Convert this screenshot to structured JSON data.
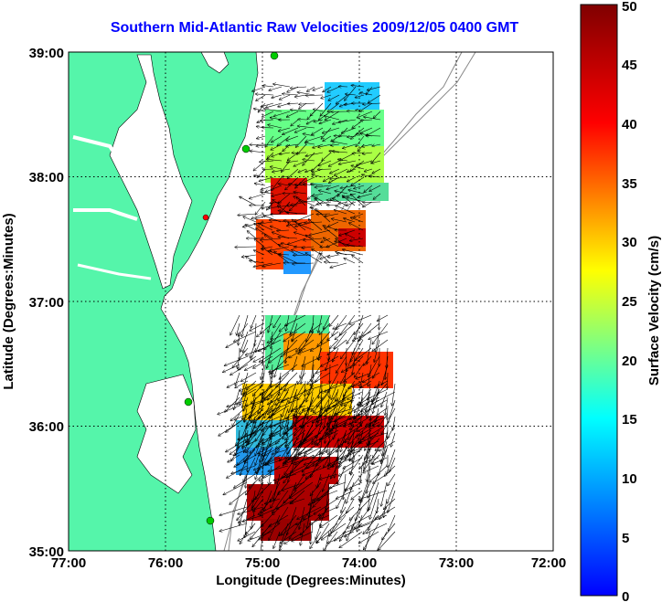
{
  "title": "Southern Mid-Atlantic Raw Velocities 2009/12/05 0400 GMT",
  "xlabel": "Longitude (Degrees:Minutes)",
  "ylabel": "Latitude (Degrees:Minutes)",
  "xticks": [
    "77:00",
    "76:00",
    "75:00",
    "74:00",
    "73:00",
    "72:00"
  ],
  "yticks": [
    "39:00",
    "38:00",
    "37:00",
    "36:00",
    "35:00"
  ],
  "colorbar": {
    "label": "Surface Velocity (cm/s)",
    "min": 0,
    "max": 50,
    "ticks": [
      "50",
      "45",
      "40",
      "35",
      "30",
      "25",
      "20",
      "15",
      "10",
      "5",
      "0"
    ],
    "colors": [
      "#0000ff",
      "#00ffff",
      "#ffff00",
      "#ff0000",
      "#800000"
    ]
  },
  "colors": {
    "land": "#55f5aa",
    "water_bg": "#ffffff",
    "stations": "#00cc00",
    "station_alert": "#ff0000"
  },
  "chart_data": {
    "type": "heatmap",
    "xlim": [
      -77,
      -72
    ],
    "ylim": [
      35,
      39
    ],
    "grid": true
  }
}
